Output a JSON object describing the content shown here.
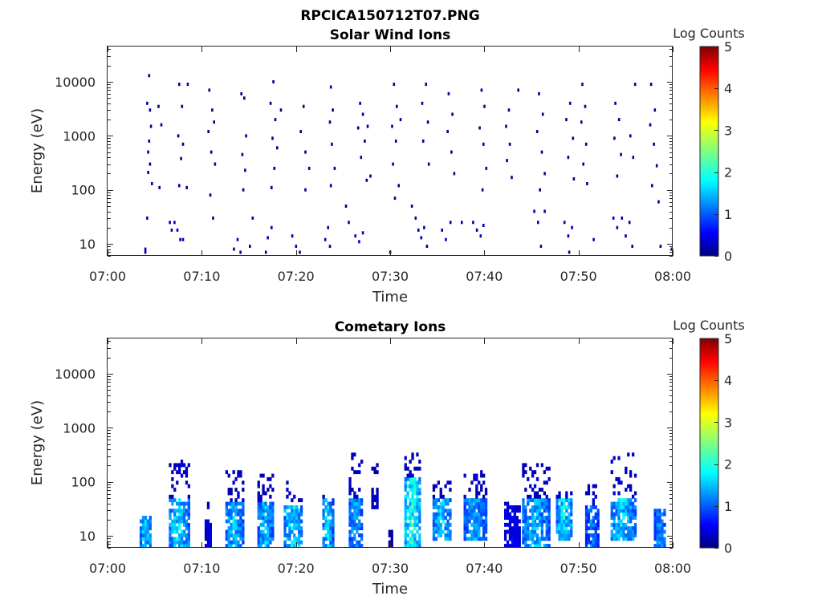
{
  "figure": {
    "title": "RPCICA150712T07.PNG",
    "background": "#ffffff"
  },
  "chart_data": [
    {
      "type": "heatmap",
      "title": "Solar Wind Ions",
      "xlabel": "Time",
      "ylabel": "Energy (eV)",
      "x_ticks": [
        "07:00",
        "07:10",
        "07:20",
        "07:30",
        "07:40",
        "07:50",
        "08:00"
      ],
      "x_range_minutes": [
        0,
        60
      ],
      "y_ticks": [
        "10",
        "100",
        "1000",
        "10000"
      ],
      "y_range": [
        6,
        45000
      ],
      "y_scale": "log",
      "colorbar": {
        "label": "Log Counts",
        "ticks": [
          "0",
          "1",
          "2",
          "3",
          "4",
          "5"
        ],
        "range": [
          0,
          5
        ],
        "colormap": "jet"
      },
      "grid": false,
      "cells": [
        {
          "t": 3.9,
          "e": 8,
          "v": 0.2
        },
        {
          "t": 3.9,
          "e": 7,
          "v": 0.2
        },
        {
          "t": 4.1,
          "e": 30,
          "v": 0.2
        },
        {
          "t": 4.3,
          "e": 13000,
          "v": 0.1
        },
        {
          "t": 4.1,
          "e": 4000,
          "v": 0.1
        },
        {
          "t": 4.4,
          "e": 3000,
          "v": 0.1
        },
        {
          "t": 4.5,
          "e": 1500,
          "v": 0.1
        },
        {
          "t": 4.3,
          "e": 800,
          "v": 0.1
        },
        {
          "t": 4.2,
          "e": 500,
          "v": 0.1
        },
        {
          "t": 4.4,
          "e": 300,
          "v": 0.1
        },
        {
          "t": 4.6,
          "e": 130,
          "v": 0.1
        },
        {
          "t": 4.2,
          "e": 210,
          "v": 0.1
        },
        {
          "t": 5.3,
          "e": 3500,
          "v": 0.1
        },
        {
          "t": 5.6,
          "e": 1600,
          "v": 0.1
        },
        {
          "t": 5.4,
          "e": 110,
          "v": 0.1
        },
        {
          "t": 6.5,
          "e": 25,
          "v": 0.3
        },
        {
          "t": 6.7,
          "e": 18,
          "v": 0.3
        },
        {
          "t": 7.0,
          "e": 25,
          "v": 0.3
        },
        {
          "t": 7.3,
          "e": 18,
          "v": 0.3
        },
        {
          "t": 7.6,
          "e": 12,
          "v": 0.3
        },
        {
          "t": 7.9,
          "e": 12,
          "v": 0.3
        },
        {
          "t": 7.5,
          "e": 9000,
          "v": 0.1
        },
        {
          "t": 8.4,
          "e": 9000,
          "v": 0.1
        },
        {
          "t": 7.8,
          "e": 3500,
          "v": 0.1
        },
        {
          "t": 7.4,
          "e": 1000,
          "v": 0.1
        },
        {
          "t": 7.9,
          "e": 700,
          "v": 0.1
        },
        {
          "t": 7.7,
          "e": 380,
          "v": 0.1
        },
        {
          "t": 7.5,
          "e": 120,
          "v": 0.1
        },
        {
          "t": 8.3,
          "e": 110,
          "v": 0.1
        },
        {
          "t": 10.7,
          "e": 7000,
          "v": 0.1
        },
        {
          "t": 11.0,
          "e": 3000,
          "v": 0.1
        },
        {
          "t": 11.2,
          "e": 1800,
          "v": 0.1
        },
        {
          "t": 10.6,
          "e": 1200,
          "v": 0.1
        },
        {
          "t": 10.9,
          "e": 500,
          "v": 0.1
        },
        {
          "t": 11.3,
          "e": 300,
          "v": 0.1
        },
        {
          "t": 10.8,
          "e": 80,
          "v": 0.1
        },
        {
          "t": 11.1,
          "e": 30,
          "v": 0.1
        },
        {
          "t": 13.3,
          "e": 8,
          "v": 0.2
        },
        {
          "t": 13.7,
          "e": 12,
          "v": 0.2
        },
        {
          "t": 14.0,
          "e": 7,
          "v": 0.2
        },
        {
          "t": 14.1,
          "e": 6000,
          "v": 0.1
        },
        {
          "t": 14.4,
          "e": 5000,
          "v": 0.1
        },
        {
          "t": 14.6,
          "e": 1000,
          "v": 0.1
        },
        {
          "t": 14.2,
          "e": 450,
          "v": 0.1
        },
        {
          "t": 14.5,
          "e": 230,
          "v": 0.1
        },
        {
          "t": 14.3,
          "e": 100,
          "v": 0.1
        },
        {
          "t": 15.0,
          "e": 9,
          "v": 0.2
        },
        {
          "t": 15.3,
          "e": 30,
          "v": 0.2
        },
        {
          "t": 16.7,
          "e": 7,
          "v": 0.3
        },
        {
          "t": 16.9,
          "e": 13,
          "v": 0.3
        },
        {
          "t": 17.3,
          "e": 20,
          "v": 0.2
        },
        {
          "t": 17.5,
          "e": 10000,
          "v": 0.1
        },
        {
          "t": 17.2,
          "e": 4000,
          "v": 0.1
        },
        {
          "t": 17.7,
          "e": 2000,
          "v": 0.1
        },
        {
          "t": 17.4,
          "e": 900,
          "v": 0.1
        },
        {
          "t": 17.9,
          "e": 600,
          "v": 0.1
        },
        {
          "t": 17.6,
          "e": 250,
          "v": 0.1
        },
        {
          "t": 17.3,
          "e": 110,
          "v": 0.1
        },
        {
          "t": 18.3,
          "e": 3000,
          "v": 0.1
        },
        {
          "t": 19.5,
          "e": 14,
          "v": 0.3
        },
        {
          "t": 19.9,
          "e": 9,
          "v": 0.3
        },
        {
          "t": 20.3,
          "e": 7,
          "v": 0.2
        },
        {
          "t": 20.7,
          "e": 3500,
          "v": 0.1
        },
        {
          "t": 20.4,
          "e": 1200,
          "v": 0.1
        },
        {
          "t": 20.9,
          "e": 500,
          "v": 0.1
        },
        {
          "t": 21.3,
          "e": 250,
          "v": 0.1
        },
        {
          "t": 20.9,
          "e": 100,
          "v": 0.1
        },
        {
          "t": 23.0,
          "e": 12,
          "v": 0.3
        },
        {
          "t": 23.3,
          "e": 20,
          "v": 0.3
        },
        {
          "t": 23.5,
          "e": 9,
          "v": 0.2
        },
        {
          "t": 23.6,
          "e": 8000,
          "v": 0.1
        },
        {
          "t": 23.8,
          "e": 3000,
          "v": 0.1
        },
        {
          "t": 23.5,
          "e": 1800,
          "v": 0.1
        },
        {
          "t": 23.7,
          "e": 700,
          "v": 0.1
        },
        {
          "t": 24.0,
          "e": 250,
          "v": 0.1
        },
        {
          "t": 23.6,
          "e": 120,
          "v": 0.1
        },
        {
          "t": 25.5,
          "e": 25,
          "v": 0.2
        },
        {
          "t": 25.2,
          "e": 50,
          "v": 0.1
        },
        {
          "t": 26.2,
          "e": 14,
          "v": 0.3
        },
        {
          "t": 26.6,
          "e": 11,
          "v": 0.3
        },
        {
          "t": 27.0,
          "e": 16,
          "v": 0.3
        },
        {
          "t": 26.7,
          "e": 4000,
          "v": 0.1
        },
        {
          "t": 27.0,
          "e": 2500,
          "v": 0.1
        },
        {
          "t": 26.5,
          "e": 1400,
          "v": 0.1
        },
        {
          "t": 27.2,
          "e": 800,
          "v": 0.1
        },
        {
          "t": 26.8,
          "e": 400,
          "v": 0.1
        },
        {
          "t": 27.4,
          "e": 150,
          "v": 0.1
        },
        {
          "t": 27.5,
          "e": 1500,
          "v": 0.1
        },
        {
          "t": 27.8,
          "e": 180,
          "v": 0.1
        },
        {
          "t": 29.9,
          "e": 7,
          "v": 0.2
        },
        {
          "t": 30.3,
          "e": 9000,
          "v": 0.1
        },
        {
          "t": 30.6,
          "e": 3500,
          "v": 0.1
        },
        {
          "t": 30.1,
          "e": 1500,
          "v": 0.1
        },
        {
          "t": 30.5,
          "e": 800,
          "v": 0.1
        },
        {
          "t": 30.2,
          "e": 300,
          "v": 0.1
        },
        {
          "t": 30.8,
          "e": 120,
          "v": 0.1
        },
        {
          "t": 30.4,
          "e": 70,
          "v": 0.1
        },
        {
          "t": 31.0,
          "e": 2000,
          "v": 0.1
        },
        {
          "t": 32.2,
          "e": 50,
          "v": 0.3
        },
        {
          "t": 32.6,
          "e": 30,
          "v": 0.3
        },
        {
          "t": 32.9,
          "e": 18,
          "v": 0.3
        },
        {
          "t": 33.2,
          "e": 13,
          "v": 0.3
        },
        {
          "t": 33.5,
          "e": 20,
          "v": 0.2
        },
        {
          "t": 33.8,
          "e": 9,
          "v": 0.2
        },
        {
          "t": 33.7,
          "e": 9000,
          "v": 0.1
        },
        {
          "t": 33.3,
          "e": 4000,
          "v": 0.1
        },
        {
          "t": 33.9,
          "e": 1800,
          "v": 0.1
        },
        {
          "t": 33.4,
          "e": 800,
          "v": 0.1
        },
        {
          "t": 34.0,
          "e": 300,
          "v": 0.1
        },
        {
          "t": 35.4,
          "e": 18,
          "v": 0.3
        },
        {
          "t": 35.8,
          "e": 12,
          "v": 0.3
        },
        {
          "t": 36.3,
          "e": 25,
          "v": 0.2
        },
        {
          "t": 36.1,
          "e": 6000,
          "v": 0.1
        },
        {
          "t": 36.5,
          "e": 2500,
          "v": 0.1
        },
        {
          "t": 36.0,
          "e": 1200,
          "v": 0.1
        },
        {
          "t": 36.4,
          "e": 500,
          "v": 0.1
        },
        {
          "t": 36.7,
          "e": 200,
          "v": 0.1
        },
        {
          "t": 37.5,
          "e": 25,
          "v": 0.2
        },
        {
          "t": 38.7,
          "e": 25,
          "v": 0.3
        },
        {
          "t": 39.1,
          "e": 18,
          "v": 0.3
        },
        {
          "t": 39.5,
          "e": 14,
          "v": 0.3
        },
        {
          "t": 39.8,
          "e": 22,
          "v": 0.2
        },
        {
          "t": 39.6,
          "e": 7000,
          "v": 0.1
        },
        {
          "t": 39.9,
          "e": 3500,
          "v": 0.1
        },
        {
          "t": 39.4,
          "e": 1400,
          "v": 0.1
        },
        {
          "t": 39.8,
          "e": 700,
          "v": 0.1
        },
        {
          "t": 40.1,
          "e": 250,
          "v": 0.1
        },
        {
          "t": 39.7,
          "e": 100,
          "v": 0.1
        },
        {
          "t": 42.5,
          "e": 3000,
          "v": 0.1
        },
        {
          "t": 42.2,
          "e": 1500,
          "v": 0.1
        },
        {
          "t": 42.6,
          "e": 700,
          "v": 0.1
        },
        {
          "t": 42.3,
          "e": 350,
          "v": 0.1
        },
        {
          "t": 42.8,
          "e": 170,
          "v": 0.1
        },
        {
          "t": 43.5,
          "e": 7000,
          "v": 0.1
        },
        {
          "t": 45.2,
          "e": 40,
          "v": 0.2
        },
        {
          "t": 45.6,
          "e": 25,
          "v": 0.3
        },
        {
          "t": 45.9,
          "e": 9,
          "v": 0.3
        },
        {
          "t": 46.3,
          "e": 40,
          "v": 0.2
        },
        {
          "t": 45.7,
          "e": 6000,
          "v": 0.1
        },
        {
          "t": 46.1,
          "e": 2500,
          "v": 0.1
        },
        {
          "t": 45.5,
          "e": 1200,
          "v": 0.1
        },
        {
          "t": 46.0,
          "e": 500,
          "v": 0.1
        },
        {
          "t": 46.3,
          "e": 200,
          "v": 0.1
        },
        {
          "t": 45.8,
          "e": 100,
          "v": 0.1
        },
        {
          "t": 48.4,
          "e": 25,
          "v": 0.2
        },
        {
          "t": 48.8,
          "e": 14,
          "v": 0.3
        },
        {
          "t": 49.2,
          "e": 20,
          "v": 0.2
        },
        {
          "t": 49.0,
          "e": 4000,
          "v": 0.1
        },
        {
          "t": 48.6,
          "e": 2000,
          "v": 0.1
        },
        {
          "t": 49.3,
          "e": 900,
          "v": 0.1
        },
        {
          "t": 48.8,
          "e": 400,
          "v": 0.1
        },
        {
          "t": 49.4,
          "e": 160,
          "v": 0.1
        },
        {
          "t": 48.9,
          "e": 7,
          "v": 0.2
        },
        {
          "t": 50.3,
          "e": 9000,
          "v": 0.1
        },
        {
          "t": 50.6,
          "e": 3500,
          "v": 0.1
        },
        {
          "t": 50.2,
          "e": 1800,
          "v": 0.1
        },
        {
          "t": 50.7,
          "e": 700,
          "v": 0.1
        },
        {
          "t": 50.4,
          "e": 300,
          "v": 0.1
        },
        {
          "t": 50.8,
          "e": 130,
          "v": 0.1
        },
        {
          "t": 51.5,
          "e": 12,
          "v": 0.2
        },
        {
          "t": 53.6,
          "e": 30,
          "v": 0.3
        },
        {
          "t": 54.0,
          "e": 20,
          "v": 0.3
        },
        {
          "t": 54.5,
          "e": 30,
          "v": 0.3
        },
        {
          "t": 54.9,
          "e": 14,
          "v": 0.3
        },
        {
          "t": 55.3,
          "e": 25,
          "v": 0.2
        },
        {
          "t": 55.6,
          "e": 9,
          "v": 0.2
        },
        {
          "t": 53.8,
          "e": 4000,
          "v": 0.1
        },
        {
          "t": 54.2,
          "e": 2000,
          "v": 0.1
        },
        {
          "t": 53.7,
          "e": 900,
          "v": 0.1
        },
        {
          "t": 54.4,
          "e": 450,
          "v": 0.1
        },
        {
          "t": 54.0,
          "e": 180,
          "v": 0.1
        },
        {
          "t": 55.9,
          "e": 9000,
          "v": 0.1
        },
        {
          "t": 55.4,
          "e": 1000,
          "v": 0.1
        },
        {
          "t": 55.7,
          "e": 400,
          "v": 0.1
        },
        {
          "t": 57.6,
          "e": 9000,
          "v": 0.1
        },
        {
          "t": 58.0,
          "e": 3000,
          "v": 0.1
        },
        {
          "t": 57.5,
          "e": 1600,
          "v": 0.1
        },
        {
          "t": 57.9,
          "e": 700,
          "v": 0.1
        },
        {
          "t": 58.2,
          "e": 280,
          "v": 0.1
        },
        {
          "t": 57.7,
          "e": 120,
          "v": 0.1
        },
        {
          "t": 58.4,
          "e": 60,
          "v": 0.1
        },
        {
          "t": 58.6,
          "e": 9,
          "v": 0.2
        },
        {
          "t": 59.8,
          "e": 8,
          "v": 0.2
        }
      ]
    },
    {
      "type": "heatmap",
      "title": "Cometary Ions",
      "xlabel": "Time",
      "ylabel": "Energy (eV)",
      "x_ticks": [
        "07:00",
        "07:10",
        "07:20",
        "07:30",
        "07:40",
        "07:50",
        "08:00"
      ],
      "x_range_minutes": [
        0,
        60
      ],
      "y_ticks": [
        "10",
        "100",
        "1000",
        "10000"
      ],
      "y_range": [
        6,
        45000
      ],
      "y_scale": "log",
      "colorbar": {
        "label": "Log Counts",
        "ticks": [
          "0",
          "1",
          "2",
          "3",
          "4",
          "5"
        ],
        "range": [
          0,
          5
        ],
        "colormap": "jet"
      },
      "grid": false,
      "bursts": [
        {
          "t0": 3.4,
          "t1": 4.5,
          "elo": 6,
          "ehi": 28,
          "peak": 1.7,
          "tailTop": 22
        },
        {
          "t0": 6.5,
          "t1": 8.5,
          "elo": 6,
          "ehi": 45,
          "peak": 1.8,
          "tailTop": 220
        },
        {
          "t0": 10.3,
          "t1": 11.0,
          "elo": 6,
          "ehi": 18,
          "peak": 0.5,
          "tailTop": 40
        },
        {
          "t0": 12.5,
          "t1": 14.3,
          "elo": 6,
          "ehi": 40,
          "peak": 1.6,
          "tailTop": 140
        },
        {
          "t0": 15.9,
          "t1": 17.5,
          "elo": 6,
          "ehi": 40,
          "peak": 1.6,
          "tailTop": 130
        },
        {
          "t0": 18.7,
          "t1": 20.6,
          "elo": 6,
          "ehi": 35,
          "peak": 1.8,
          "tailTop": 90
        },
        {
          "t0": 22.8,
          "t1": 23.8,
          "elo": 6,
          "ehi": 45,
          "peak": 1.7,
          "tailTop": 50
        },
        {
          "t0": 25.6,
          "t1": 27.0,
          "elo": 6,
          "ehi": 45,
          "peak": 1.5,
          "tailTop": 300
        },
        {
          "t0": 28.0,
          "t1": 28.7,
          "elo": 30,
          "ehi": 60,
          "peak": 0.4,
          "tailTop": 200
        },
        {
          "t0": 29.8,
          "t1": 30.2,
          "elo": 6,
          "ehi": 12,
          "peak": 0.3,
          "tailTop": 12
        },
        {
          "t0": 31.5,
          "t1": 33.2,
          "elo": 6,
          "ehi": 110,
          "peak": 2.0,
          "tailTop": 320
        },
        {
          "t0": 34.5,
          "t1": 36.4,
          "elo": 8,
          "ehi": 45,
          "peak": 1.7,
          "tailTop": 90
        },
        {
          "t0": 37.8,
          "t1": 40.2,
          "elo": 8,
          "ehi": 45,
          "peak": 1.5,
          "tailTop": 140
        },
        {
          "t0": 42.1,
          "t1": 43.6,
          "elo": 6,
          "ehi": 35,
          "peak": 0.6,
          "tailTop": 40
        },
        {
          "t0": 44.0,
          "t1": 46.8,
          "elo": 6,
          "ehi": 45,
          "peak": 1.6,
          "tailTop": 200
        },
        {
          "t0": 47.6,
          "t1": 49.3,
          "elo": 7,
          "ehi": 45,
          "peak": 1.8,
          "tailTop": 60
        },
        {
          "t0": 50.7,
          "t1": 52.0,
          "elo": 6,
          "ehi": 35,
          "peak": 1.3,
          "tailTop": 80
        },
        {
          "t0": 53.4,
          "t1": 56.0,
          "elo": 8,
          "ehi": 45,
          "peak": 1.7,
          "tailTop": 300
        },
        {
          "t0": 58.0,
          "t1": 59.2,
          "elo": 6,
          "ehi": 28,
          "peak": 1.4,
          "tailTop": 28
        }
      ]
    }
  ]
}
